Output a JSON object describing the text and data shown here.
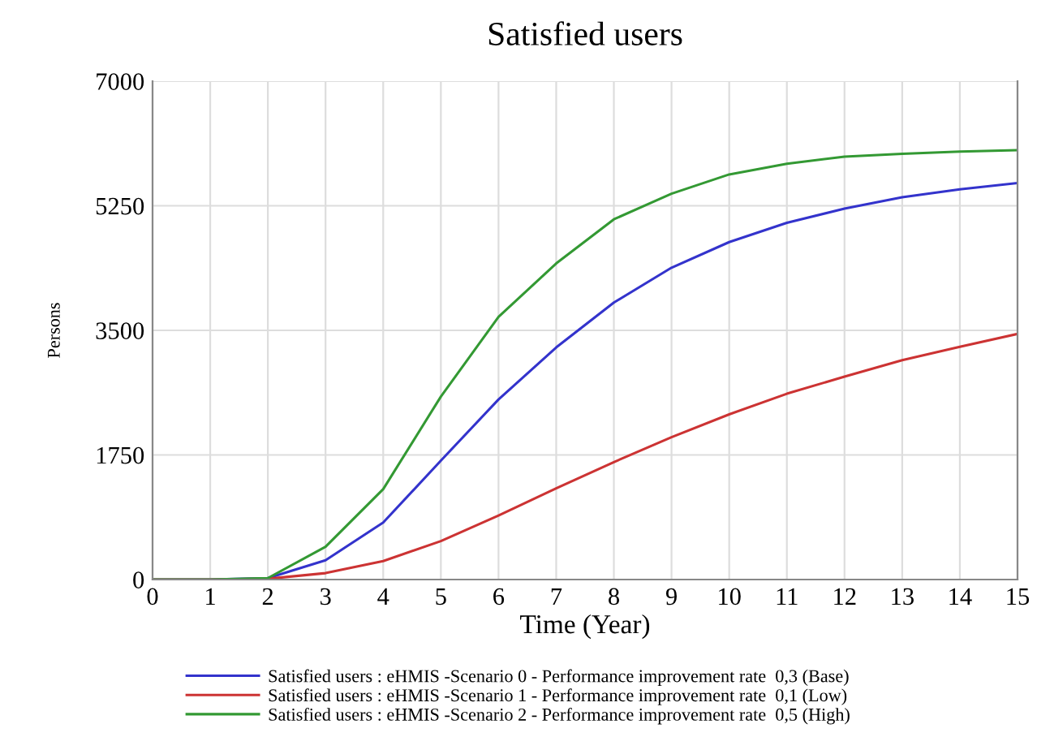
{
  "chart_data": {
    "type": "line",
    "title": "Satisfied users",
    "xlabel": "Time (Year)",
    "ylabel": "Persons",
    "x": [
      0,
      1,
      2,
      3,
      4,
      5,
      6,
      7,
      8,
      9,
      10,
      11,
      12,
      13,
      14,
      15
    ],
    "xlim": [
      0,
      15
    ],
    "xticks": [
      0,
      1,
      2,
      3,
      4,
      5,
      6,
      7,
      8,
      9,
      10,
      11,
      12,
      13,
      14,
      15
    ],
    "ylim": [
      0,
      7000
    ],
    "yticks": [
      0,
      1750,
      3500,
      5250,
      7000
    ],
    "grid": true,
    "legend": "bottom",
    "marker": "none",
    "line_style": "solid",
    "series": [
      {
        "name": "Satisfied users : eHMIS -Scenario 0 - Performance improvement rate  0,3 (Base)",
        "color": "#3333cc",
        "values": [
          0,
          0,
          20,
          270,
          800,
          1670,
          2530,
          3260,
          3890,
          4380,
          4740,
          5010,
          5210,
          5370,
          5480,
          5570
        ]
      },
      {
        "name": "Satisfied users : eHMIS -Scenario 1 - Performance improvement rate  0,1 (Low)",
        "color": "#cc3333",
        "values": [
          0,
          0,
          10,
          90,
          260,
          540,
          900,
          1280,
          1650,
          2000,
          2320,
          2610,
          2850,
          3080,
          3270,
          3450
        ]
      },
      {
        "name": "Satisfied users : eHMIS -Scenario 2 - Performance improvement rate  0,5 (High)",
        "color": "#339933",
        "values": [
          0,
          0,
          20,
          460,
          1270,
          2570,
          3690,
          4440,
          5060,
          5420,
          5690,
          5840,
          5940,
          5980,
          6010,
          6030
        ]
      }
    ]
  }
}
